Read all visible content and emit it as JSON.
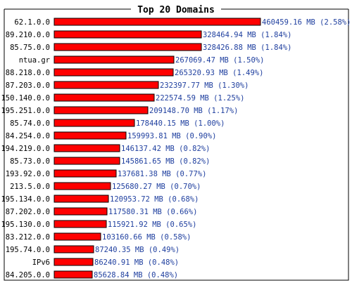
{
  "colors": {
    "bar": "#ff0000",
    "bar_outline": "#000000",
    "value_text": "#1f3f9f",
    "background": "#ffffff"
  },
  "chart_data": {
    "type": "bar",
    "orientation": "horizontal",
    "title": "Top 20 Domains",
    "unit": "MB",
    "categories": [
      "62.1.0.0",
      "89.210.0.0",
      "85.75.0.0",
      "ntua.gr",
      "88.218.0.0",
      "87.203.0.0",
      "150.140.0.0",
      "195.251.0.0",
      "85.74.0.0",
      "84.254.0.0",
      "194.219.0.0",
      "85.73.0.0",
      "193.92.0.0",
      "213.5.0.0",
      "195.134.0.0",
      "87.202.0.0",
      "195.130.0.0",
      "83.212.0.0",
      "195.74.0.0",
      "IPv6",
      "84.205.0.0"
    ],
    "values": [
      460459.16,
      328464.94,
      328426.88,
      267069.47,
      265320.93,
      232397.77,
      222574.59,
      209148.7,
      178440.15,
      159993.81,
      146137.42,
      145861.65,
      137681.38,
      125680.27,
      120953.72,
      117580.31,
      115921.92,
      103160.66,
      87240.35,
      86240.91,
      85628.84
    ],
    "value_labels": [
      "460459.16 MB (2.58%)",
      "328464.94 MB (1.84%)",
      "328426.88 MB (1.84%)",
      "267069.47 MB (1.50%)",
      "265320.93 MB (1.49%)",
      "232397.77 MB (1.30%)",
      "222574.59 MB (1.25%)",
      "209148.70 MB (1.17%)",
      "178440.15 MB (1.00%)",
      "159993.81 MB (0.90%)",
      "146137.42 MB (0.82%)",
      "145861.65 MB (0.82%)",
      "137681.38 MB (0.77%)",
      "125680.27 MB (0.70%)",
      "120953.72 MB (0.68%)",
      "117580.31 MB (0.66%)",
      "115921.92 MB (0.65%)",
      "103160.66 MB (0.58%)",
      "87240.35 MB (0.49%)",
      "86240.91 MB (0.48%)",
      "85628.84 MB (0.48%)"
    ],
    "percentages": [
      2.58,
      1.84,
      1.84,
      1.5,
      1.49,
      1.3,
      1.25,
      1.17,
      1.0,
      0.9,
      0.82,
      0.82,
      0.77,
      0.7,
      0.68,
      0.66,
      0.65,
      0.58,
      0.49,
      0.48,
      0.48
    ],
    "grid": false,
    "legend": "none"
  }
}
